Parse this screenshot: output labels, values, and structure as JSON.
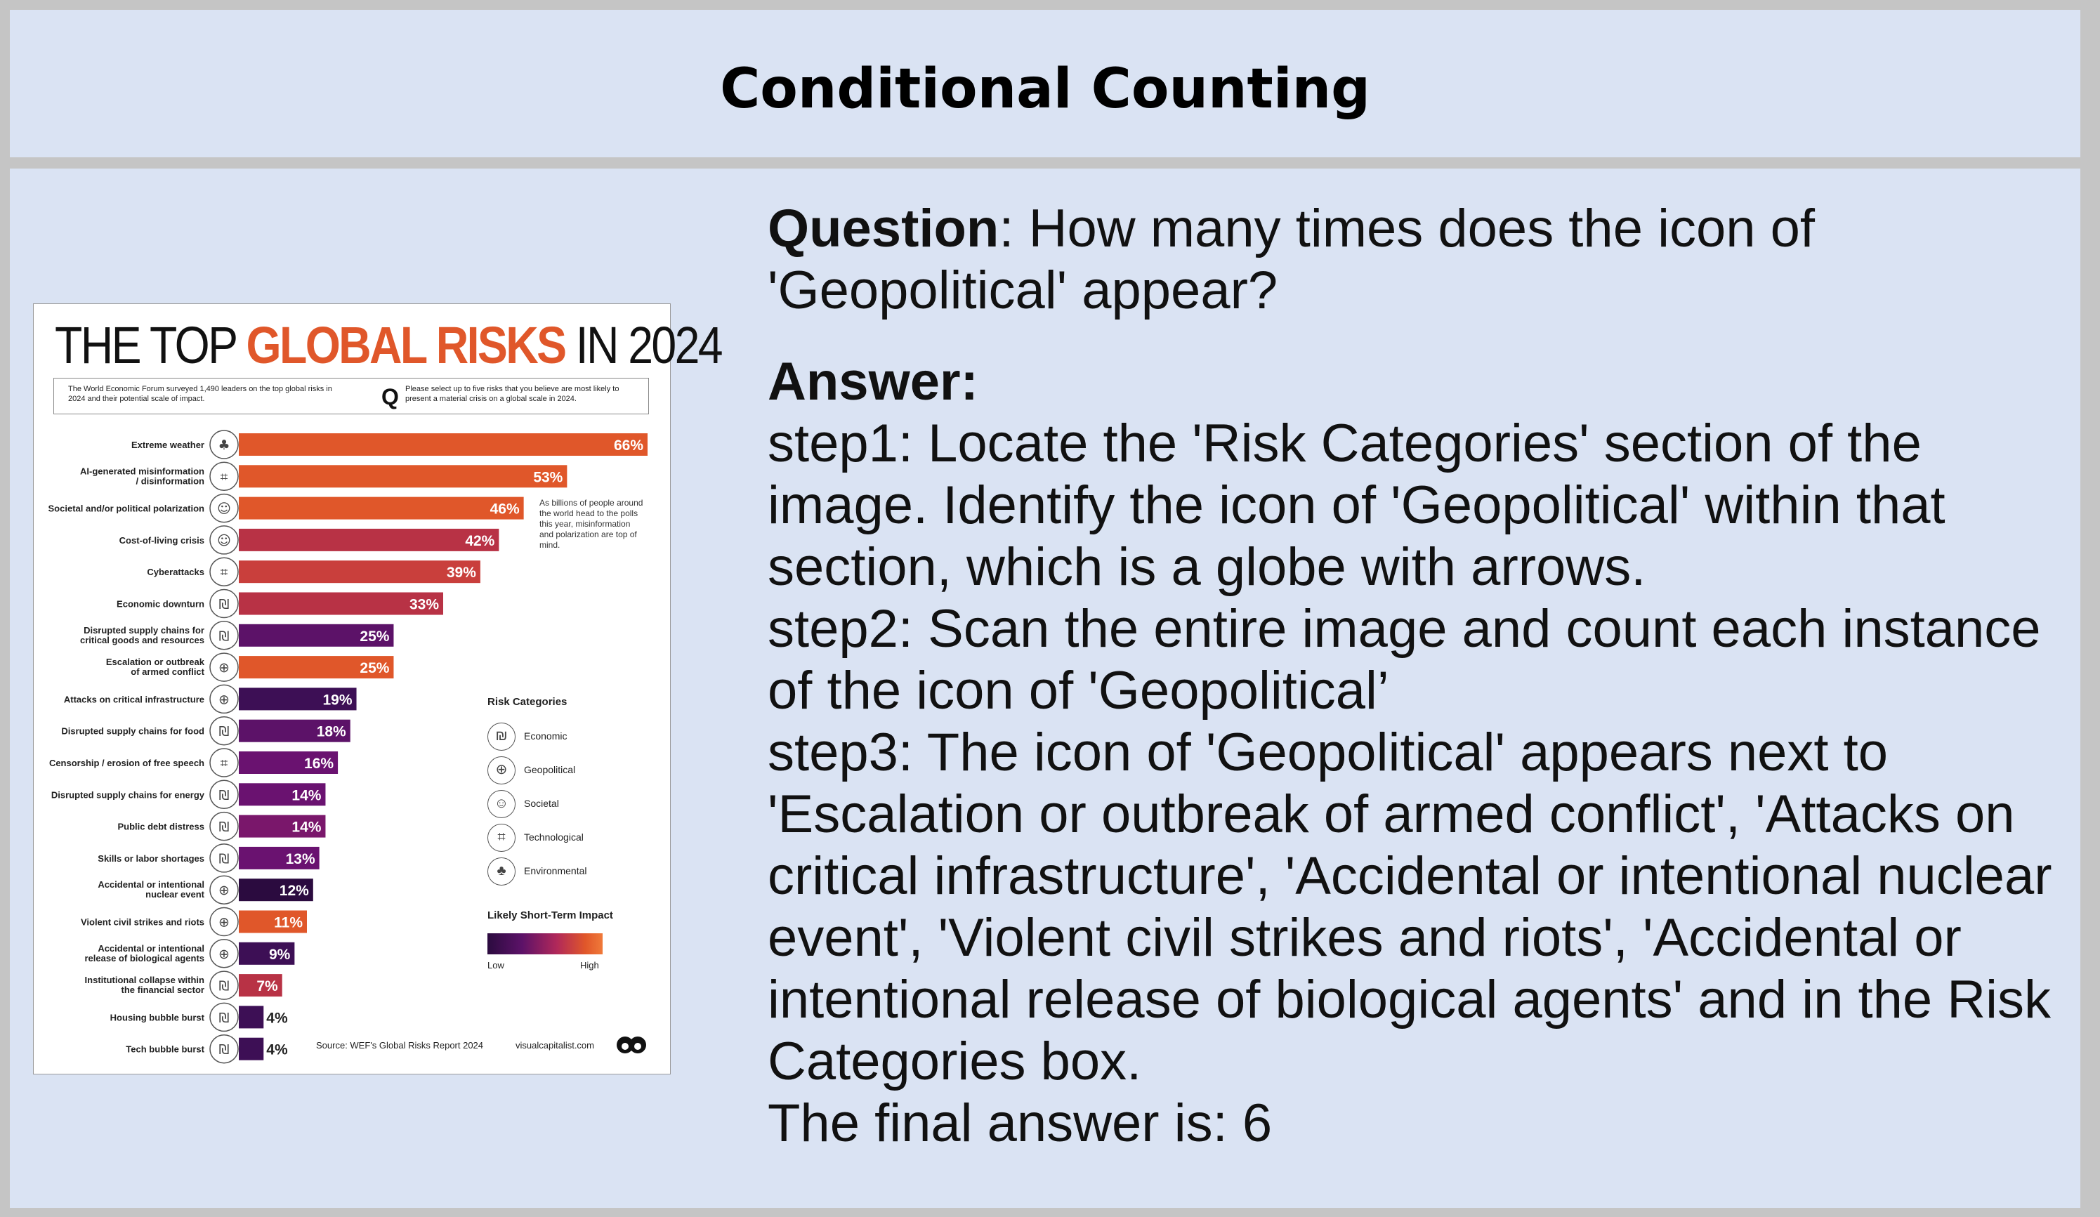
{
  "header": {
    "title": "Conditional Counting"
  },
  "qa": {
    "question_label": "Question",
    "question_text": ": How many times does the icon of 'Geopolitical' appear?",
    "answer_label": "Answer:",
    "step1": "step1: Locate the 'Risk Categories' section of the image. Identify the icon of 'Geopolitical' within that section, which is a globe with arrows.",
    "step2": "step2: Scan the entire image and count each instance of the icon of 'Geopolitical’",
    "step3": "step3: The icon of 'Geopolitical' appears next to 'Escalation or outbreak of armed conflict', 'Attacks on critical infrastructure', 'Accidental or intentional nuclear event', 'Violent civil strikes and riots', 'Accidental or intentional release of biological agents' and in the Risk Categories box.",
    "final": "The final answer is: 6"
  },
  "infographic": {
    "title_part1": "THE TOP ",
    "title_highlight": "GLOBAL RISKS",
    "title_part2": " IN 2024",
    "intro_left": "The World Economic Forum surveyed 1,490 leaders on the top global risks in 2024 and their potential scale of impact.",
    "intro_q": "Q",
    "intro_right": "Please select up to five risks that you believe are most likely to present a material crisis on a global scale in 2024.",
    "annotation": "As billions of people around the world head to the polls this year, misinformation and polarization are top of mind.",
    "legend_title": "Risk Categories",
    "legend": [
      {
        "label": "Economic",
        "icon": "economic-icon",
        "glyph": "₪"
      },
      {
        "label": "Geopolitical",
        "icon": "geopolitical-icon",
        "glyph": "⊕"
      },
      {
        "label": "Societal",
        "icon": "societal-icon",
        "glyph": "☺"
      },
      {
        "label": "Technological",
        "icon": "technological-icon",
        "glyph": "⌗"
      },
      {
        "label": "Environmental",
        "icon": "environmental-icon",
        "glyph": "♣"
      }
    ],
    "impact_title": "Likely Short-Term Impact",
    "impact_low": "Low",
    "impact_high": "High",
    "source": "Source: WEF's Global Risks Report 2024",
    "site": "visualcapitalist.com"
  },
  "chart_data": {
    "type": "bar",
    "orientation": "horizontal",
    "xlim": [
      0,
      66
    ],
    "unit": "%",
    "color_scale": {
      "low": "#2b0b3f",
      "mid": "#6a1270",
      "high": "#e0572a"
    },
    "categories": [
      "Extreme weather",
      "AI-generated misinformation / disinformation",
      "Societal and/or political polarization",
      "Cost-of-living crisis",
      "Cyberattacks",
      "Economic downturn",
      "Disrupted supply chains for critical goods and resources",
      "Escalation or outbreak of armed conflict",
      "Attacks on critical infrastructure",
      "Disrupted supply chains for food",
      "Censorship / erosion of free speech",
      "Disrupted supply chains for energy",
      "Public debt distress",
      "Skills or labor shortages",
      "Accidental or intentional nuclear event",
      "Violent civil strikes and riots",
      "Accidental or intentional release of biological agents",
      "Institutional collapse within the financial sector",
      "Housing bubble burst",
      "Tech bubble burst"
    ],
    "label_lines": [
      [
        "Extreme weather"
      ],
      [
        "AI-generated misinformation",
        "/ disinformation"
      ],
      [
        "Societal and/or political polarization"
      ],
      [
        "Cost-of-living crisis"
      ],
      [
        "Cyberattacks"
      ],
      [
        "Economic downturn"
      ],
      [
        "Disrupted supply chains for",
        "critical goods and resources"
      ],
      [
        "Escalation or outbreak",
        "of armed conflict"
      ],
      [
        "Attacks on critical infrastructure"
      ],
      [
        "Disrupted supply chains for food"
      ],
      [
        "Censorship / erosion of free speech"
      ],
      [
        "Disrupted supply chains for energy"
      ],
      [
        "Public debt distress"
      ],
      [
        "Skills or labor shortages"
      ],
      [
        "Accidental or intentional",
        "nuclear event"
      ],
      [
        "Violent civil strikes and riots"
      ],
      [
        "Accidental or intentional",
        "release of biological agents"
      ],
      [
        "Institutional collapse within",
        "the financial sector"
      ],
      [
        "Housing bubble burst"
      ],
      [
        "Tech bubble burst"
      ]
    ],
    "values": [
      66,
      53,
      46,
      42,
      39,
      33,
      25,
      25,
      19,
      18,
      16,
      14,
      14,
      13,
      12,
      11,
      9,
      7,
      4,
      4
    ],
    "value_labels": [
      "66%",
      "53%",
      "46%",
      "42%",
      "39%",
      "33%",
      "25%",
      "25%",
      "19%",
      "18%",
      "16%",
      "14%",
      "14%",
      "13%",
      "12%",
      "11%",
      "9%",
      "7%",
      "4%",
      "4%"
    ],
    "bar_colors": [
      "#e0572a",
      "#e0572a",
      "#e0572a",
      "#b83245",
      "#c93f3c",
      "#b83245",
      "#5c1268",
      "#e0572a",
      "#3d0f55",
      "#5c1268",
      "#6a1270",
      "#6a1270",
      "#7a176b",
      "#6a1270",
      "#2b0b3f",
      "#e0572a",
      "#3d0f55",
      "#b83245",
      "#3d0f55",
      "#3d0f55"
    ],
    "category_icons": [
      "environmental",
      "technological",
      "societal",
      "societal",
      "technological",
      "economic",
      "economic",
      "geopolitical",
      "geopolitical",
      "economic",
      "technological",
      "economic",
      "economic",
      "economic",
      "geopolitical",
      "geopolitical",
      "geopolitical",
      "economic",
      "economic",
      "economic"
    ]
  }
}
